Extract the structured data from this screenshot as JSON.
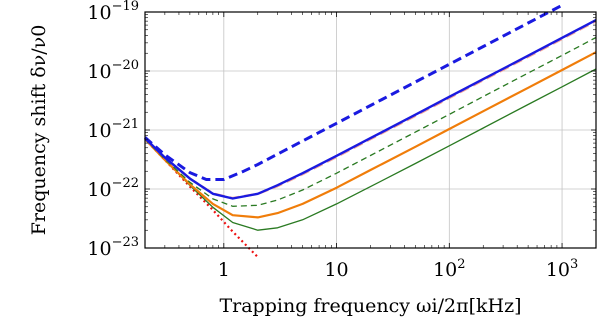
{
  "chart_data": {
    "type": "line",
    "xscale": "log",
    "yscale": "log",
    "xlim": [
      0.2,
      2000
    ],
    "ylim": [
      1e-23,
      1e-19
    ],
    "grid": true,
    "xlabel": "Trapping frequency ωi/2π[kHz]",
    "ylabel": "Frequency shift δν/ν0",
    "xticks": [
      {
        "value": 1,
        "label": "1"
      },
      {
        "value": 10,
        "label": "10"
      },
      {
        "value": 100,
        "base": "10",
        "exp": "2"
      },
      {
        "value": 1000,
        "base": "10",
        "exp": "3"
      }
    ],
    "yticks": [
      {
        "value": 1e-23,
        "base": "10",
        "exp": "−23"
      },
      {
        "value": 1e-22,
        "base": "10",
        "exp": "−22"
      },
      {
        "value": 1e-21,
        "base": "10",
        "exp": "−21"
      },
      {
        "value": 1e-20,
        "base": "10",
        "exp": "−20"
      },
      {
        "value": 1e-19,
        "base": "10",
        "exp": "−19"
      }
    ],
    "series": [
      {
        "color": "#ee1111",
        "dash": "2,3",
        "width": 2.2,
        "x": [
          0.2,
          0.3,
          0.5,
          0.8,
          1.2,
          2.0
        ],
        "y": [
          7e-22,
          3.1e-22,
          1.1e-22,
          4.4e-23,
          1.9e-23,
          7e-24
        ]
      },
      {
        "color": "#2a7a22",
        "dash": "",
        "width": 1.3,
        "x": [
          0.2,
          0.3,
          0.5,
          0.8,
          1.2,
          2.0,
          3,
          5,
          10,
          20,
          50,
          100,
          200,
          500,
          1000,
          2000
        ],
        "y": [
          7e-22,
          3.1e-22,
          1.15e-22,
          4.9e-23,
          2.7e-23,
          2e-23,
          2.2e-23,
          3e-23,
          5.6e-23,
          1.1e-22,
          2.7e-22,
          5.4e-22,
          1.08e-21,
          2.7e-21,
          5.4e-21,
          1.08e-20
        ]
      },
      {
        "color": "#f07d0a",
        "dash": "",
        "width": 2.2,
        "x": [
          0.2,
          0.3,
          0.5,
          0.8,
          1.2,
          2.0,
          3,
          5,
          10,
          20,
          50,
          100,
          200,
          500,
          1000,
          2000
        ],
        "y": [
          7e-22,
          3.1e-22,
          1.2e-22,
          5.6e-23,
          3.6e-23,
          3.3e-23,
          3.9e-23,
          5.6e-23,
          1.05e-22,
          2.1e-22,
          5.2e-22,
          1.04e-21,
          2.08e-21,
          5.2e-21,
          1.04e-20,
          2.08e-20
        ]
      },
      {
        "color": "#2a7a22",
        "dash": "6,4",
        "width": 1.3,
        "x": [
          0.2,
          0.3,
          0.5,
          0.8,
          1.2,
          2.0,
          3,
          5,
          10,
          20,
          50,
          100,
          200,
          500,
          1000,
          2000
        ],
        "y": [
          7e-22,
          3.2e-22,
          1.3e-22,
          6.8e-23,
          5.1e-23,
          5.3e-23,
          6.5e-23,
          9.6e-23,
          1.85e-22,
          3.7e-22,
          9.2e-22,
          1.84e-21,
          3.7e-21,
          9.2e-21,
          1.84e-20,
          3.7e-20
        ]
      },
      {
        "color": "#f4a59a",
        "dash": "10,5",
        "width": 2.4,
        "x": [
          0.2,
          0.3,
          0.5,
          0.8,
          1.2,
          2.0,
          3,
          5,
          10,
          20,
          50,
          100,
          200,
          500,
          1000,
          2000
        ],
        "y": [
          7.3e-22,
          3.4e-22,
          1.5e-22,
          8.4e-23,
          7e-23,
          8.3e-23,
          1.12e-22,
          1.78e-22,
          3.5e-22,
          7e-22,
          1.74e-21,
          3.5e-21,
          7e-21,
          1.74e-20,
          3.5e-20,
          7e-20
        ]
      },
      {
        "color": "#1a1ae0",
        "dash": "",
        "width": 2.4,
        "x": [
          0.2,
          0.3,
          0.5,
          0.8,
          1.2,
          2.0,
          3,
          5,
          10,
          20,
          50,
          100,
          200,
          500,
          1000,
          2000
        ],
        "y": [
          7.3e-22,
          3.4e-22,
          1.5e-22,
          8.3e-23,
          6.9e-23,
          8.3e-23,
          1.16e-22,
          1.85e-22,
          3.65e-22,
          7.3e-22,
          1.82e-21,
          3.65e-21,
          7.3e-21,
          1.82e-20,
          3.65e-20,
          7.3e-20
        ]
      },
      {
        "color": "#1a1ae0",
        "dash": "9,5",
        "width": 3,
        "x": [
          0.2,
          0.3,
          0.5,
          0.7,
          1.0,
          1.5,
          2.0,
          3,
          5,
          10,
          20,
          50,
          100,
          200,
          500,
          1000
        ],
        "y": [
          7.5e-22,
          3.8e-22,
          1.9e-22,
          1.45e-22,
          1.45e-22,
          2e-22,
          2.6e-22,
          3.9e-22,
          6.5e-22,
          1.3e-21,
          2.6e-21,
          6.5e-21,
          1.3e-20,
          2.6e-20,
          6.5e-20,
          1.3e-19
        ]
      }
    ]
  }
}
